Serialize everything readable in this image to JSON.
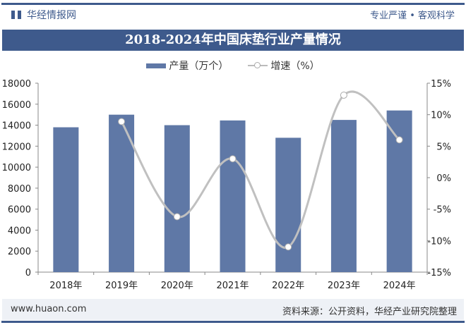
{
  "header": {
    "brand": "华经情报网",
    "slogan": "专业严谨 • 客观科学"
  },
  "footer": {
    "site": "www.huaon.com",
    "source": "资料来源：公开资料，华经产业研究院整理"
  },
  "colors": {
    "bar": "#5f78a6",
    "line": "#c0c0c0",
    "header": "#3e5a8c"
  },
  "chart_data": {
    "type": "bar+line",
    "title": "2018-2024年中国床垫行业产量情况",
    "categories": [
      "2018年",
      "2019年",
      "2020年",
      "2021年",
      "2022年",
      "2023年",
      "2024年"
    ],
    "series": [
      {
        "name": "产量（万个）",
        "type": "bar",
        "axis": "left",
        "values": [
          13800,
          15000,
          14000,
          14450,
          12800,
          14500,
          15400
        ]
      },
      {
        "name": "增速（%）",
        "type": "line",
        "axis": "right",
        "values": [
          null,
          8.9,
          -6.2,
          3.0,
          -11.0,
          13.1,
          6.0
        ]
      }
    ],
    "y_left": {
      "range": [
        0,
        18000
      ],
      "ticks": [
        "0",
        "2000",
        "4000",
        "6000",
        "8000",
        "10000",
        "12000",
        "14000",
        "16000",
        "18000"
      ]
    },
    "y_right": {
      "range": [
        -15,
        15
      ],
      "ticks": [
        "-15%",
        "-10%",
        "-5%",
        "0%",
        "5%",
        "10%",
        "15%"
      ]
    },
    "grid": false,
    "legend": "top-center"
  }
}
